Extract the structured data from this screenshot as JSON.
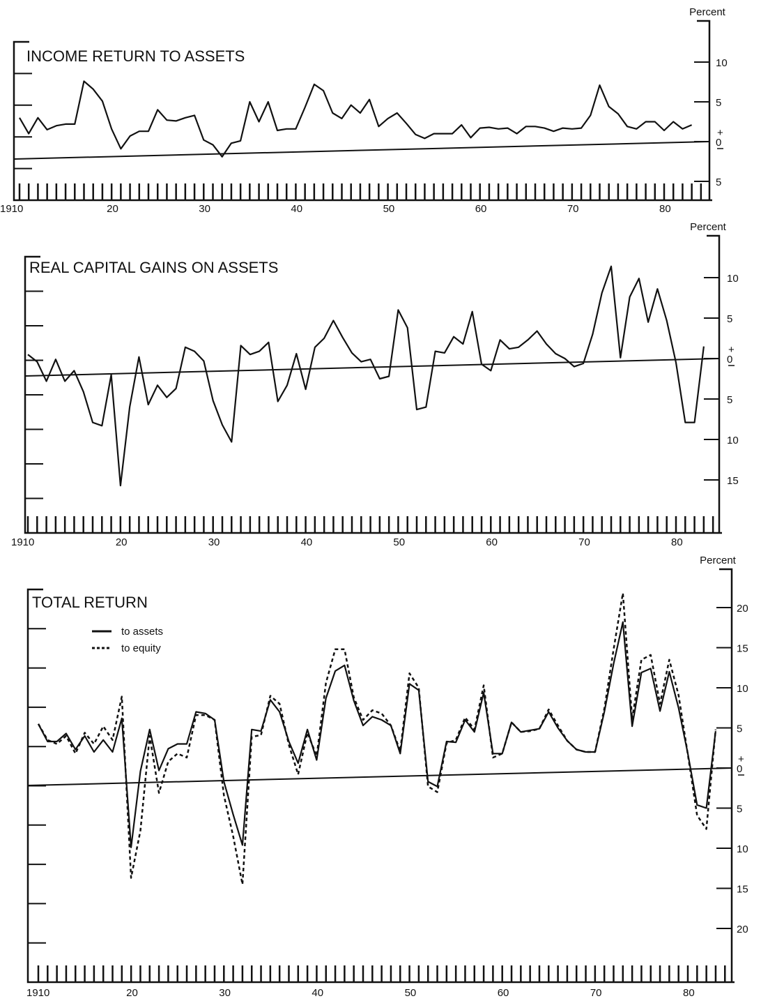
{
  "chart_data": [
    {
      "type": "line",
      "title": "INCOME RETURN TO ASSETS",
      "unit_label": "Percent",
      "ylim": [
        -5,
        13
      ],
      "yticks": [
        {
          "v": 10,
          "t": "10"
        },
        {
          "v": 5,
          "t": "5"
        },
        {
          "v": 0,
          "t": "0"
        },
        {
          "v": -5,
          "t": "5"
        }
      ],
      "xticks": [
        {
          "v": 1910,
          "t": "1910"
        },
        {
          "v": 1920,
          "t": "20"
        },
        {
          "v": 1930,
          "t": "30"
        },
        {
          "v": 1940,
          "t": "40"
        },
        {
          "v": 1950,
          "t": "50"
        },
        {
          "v": 1960,
          "t": "60"
        },
        {
          "v": 1970,
          "t": "70"
        },
        {
          "v": 1980,
          "t": "80"
        }
      ],
      "xlim": [
        1910,
        1983
      ],
      "series": [
        {
          "style": "solid",
          "x": [
            1910,
            1911,
            1912,
            1913,
            1914,
            1915,
            1916,
            1917,
            1918,
            1919,
            1920,
            1921,
            1922,
            1923,
            1924,
            1925,
            1926,
            1927,
            1928,
            1929,
            1930,
            1931,
            1932,
            1933,
            1934,
            1935,
            1936,
            1937,
            1938,
            1939,
            1940,
            1941,
            1942,
            1943,
            1944,
            1945,
            1946,
            1947,
            1948,
            1949,
            1950,
            1951,
            1952,
            1953,
            1954,
            1955,
            1956,
            1957,
            1958,
            1959,
            1960,
            1961,
            1962,
            1963,
            1964,
            1965,
            1966,
            1967,
            1968,
            1969,
            1970,
            1971,
            1972,
            1973,
            1974,
            1975,
            1976,
            1977,
            1978,
            1979,
            1980,
            1981,
            1982,
            1983
          ],
          "y": [
            3.0,
            1.0,
            3.0,
            1.5,
            2.0,
            2.2,
            2.2,
            7.6,
            6.6,
            5.1,
            1.6,
            -0.9,
            0.7,
            1.3,
            1.3,
            4.0,
            2.7,
            2.6,
            3.0,
            3.3,
            0.2,
            -0.4,
            -1.9,
            -0.2,
            0.1,
            5.0,
            2.5,
            5.0,
            1.4,
            1.6,
            1.6,
            4.3,
            7.2,
            6.4,
            3.6,
            2.9,
            4.6,
            3.6,
            5.3,
            1.9,
            2.9,
            3.6,
            2.3,
            0.9,
            0.4,
            1.0,
            1.0,
            1.0,
            2.1,
            0.5,
            1.7,
            1.8,
            1.6,
            1.7,
            1.0,
            1.9,
            1.9,
            1.7,
            1.3,
            1.7,
            1.6,
            1.7,
            3.3,
            7.1,
            4.4,
            3.5,
            1.9,
            1.6,
            2.5,
            2.5,
            1.4,
            2.5,
            1.6,
            2.1
          ]
        }
      ]
    },
    {
      "type": "line",
      "title": "REAL CAPITAL GAINS ON ASSETS",
      "unit_label": "Percent",
      "ylim": [
        -19,
        14
      ],
      "yticks": [
        {
          "v": 10,
          "t": "10"
        },
        {
          "v": 5,
          "t": "5"
        },
        {
          "v": 0,
          "t": "0"
        },
        {
          "v": -5,
          "t": "5"
        },
        {
          "v": -10,
          "t": "10"
        },
        {
          "v": -15,
          "t": "15"
        }
      ],
      "xticks": [
        {
          "v": 1910,
          "t": "1910"
        },
        {
          "v": 1920,
          "t": "20"
        },
        {
          "v": 1930,
          "t": "30"
        },
        {
          "v": 1940,
          "t": "40"
        },
        {
          "v": 1950,
          "t": "50"
        },
        {
          "v": 1960,
          "t": "60"
        },
        {
          "v": 1970,
          "t": "70"
        },
        {
          "v": 1980,
          "t": "80"
        }
      ],
      "xlim": [
        1910,
        1983
      ],
      "series": [
        {
          "style": "solid",
          "x": [
            1910,
            1911,
            1912,
            1913,
            1914,
            1915,
            1916,
            1917,
            1918,
            1919,
            1920,
            1921,
            1922,
            1923,
            1924,
            1925,
            1926,
            1927,
            1928,
            1929,
            1930,
            1931,
            1932,
            1933,
            1934,
            1935,
            1936,
            1937,
            1938,
            1939,
            1940,
            1941,
            1942,
            1943,
            1944,
            1945,
            1946,
            1947,
            1948,
            1949,
            1950,
            1951,
            1952,
            1953,
            1954,
            1955,
            1956,
            1957,
            1958,
            1959,
            1960,
            1961,
            1962,
            1963,
            1964,
            1965,
            1966,
            1967,
            1968,
            1969,
            1970,
            1971,
            1972,
            1973,
            1974,
            1975,
            1976,
            1977,
            1978,
            1979,
            1980,
            1981,
            1982,
            1983
          ],
          "y": [
            0.5,
            -0.4,
            -2.8,
            -0.1,
            -2.8,
            -1.5,
            -4.1,
            -7.9,
            -8.3,
            -2.0,
            -15.7,
            -6.0,
            0.2,
            -5.7,
            -3.3,
            -4.8,
            -3.7,
            1.4,
            0.9,
            -0.3,
            -5.2,
            -8.2,
            -10.3,
            1.6,
            0.5,
            0.9,
            2.0,
            -5.3,
            -3.3,
            0.6,
            -3.8,
            1.4,
            2.5,
            4.7,
            2.6,
            0.7,
            -0.4,
            -0.1,
            -2.5,
            -2.2,
            6.0,
            3.8,
            -6.3,
            -6.0,
            0.9,
            0.7,
            2.7,
            1.8,
            5.8,
            -0.7,
            -1.5,
            2.3,
            1.2,
            1.4,
            2.3,
            3.4,
            1.8,
            0.6,
            0.0,
            -1.0,
            -0.6,
            3.0,
            8.1,
            11.4,
            0.1,
            7.6,
            9.9,
            4.5,
            8.6,
            4.7,
            -0.5,
            -7.9,
            -7.9,
            1.5
          ]
        }
      ]
    },
    {
      "type": "line",
      "title": "TOTAL RETURN",
      "unit_label": "Percent",
      "ylim": [
        -22,
        25
      ],
      "yticks": [
        {
          "v": 20,
          "t": "20"
        },
        {
          "v": 15,
          "t": "15"
        },
        {
          "v": 10,
          "t": "10"
        },
        {
          "v": 5,
          "t": "5"
        },
        {
          "v": 0,
          "t": "0"
        },
        {
          "v": -5,
          "t": "5"
        },
        {
          "v": -10,
          "t": "10"
        },
        {
          "v": -15,
          "t": "15"
        },
        {
          "v": -20,
          "t": "20"
        }
      ],
      "xticks": [
        {
          "v": 1910,
          "t": "1910"
        },
        {
          "v": 1920,
          "t": "20"
        },
        {
          "v": 1930,
          "t": "30"
        },
        {
          "v": 1940,
          "t": "40"
        },
        {
          "v": 1950,
          "t": "50"
        },
        {
          "v": 1960,
          "t": "60"
        },
        {
          "v": 1970,
          "t": "70"
        },
        {
          "v": 1980,
          "t": "80"
        }
      ],
      "xlim": [
        1910,
        1983
      ],
      "legend": [
        {
          "label": "to assets",
          "style": "solid"
        },
        {
          "label": "to equity",
          "style": "dashed"
        }
      ],
      "series": [
        {
          "name": "to assets",
          "style": "solid",
          "x": [
            1910,
            1911,
            1912,
            1913,
            1914,
            1915,
            1916,
            1917,
            1918,
            1919,
            1920,
            1921,
            1922,
            1923,
            1924,
            1925,
            1926,
            1927,
            1928,
            1929,
            1930,
            1931,
            1932,
            1933,
            1934,
            1935,
            1936,
            1937,
            1938,
            1939,
            1940,
            1941,
            1942,
            1943,
            1944,
            1945,
            1946,
            1947,
            1948,
            1949,
            1950,
            1951,
            1952,
            1953,
            1954,
            1955,
            1956,
            1957,
            1958,
            1959,
            1960,
            1961,
            1962,
            1963,
            1964,
            1965,
            1966,
            1967,
            1968,
            1969,
            1970,
            1971,
            1972,
            1973,
            1974,
            1975,
            1976,
            1977,
            1978,
            1979,
            1980,
            1981,
            1982,
            1983
          ],
          "y": [
            5.5,
            3.3,
            3.3,
            4.3,
            2.3,
            4.0,
            2.0,
            3.5,
            2.0,
            6.2,
            -9.9,
            -0.4,
            4.8,
            -0.3,
            2.4,
            3.0,
            3.0,
            7.0,
            6.8,
            6.0,
            -1.7,
            -5.8,
            -9.6,
            4.8,
            4.6,
            8.5,
            7.0,
            3.3,
            0.6,
            4.8,
            1.0,
            8.7,
            12.1,
            12.8,
            8.4,
            5.3,
            6.4,
            6.0,
            5.3,
            1.8,
            10.5,
            9.7,
            -1.7,
            -2.3,
            3.3,
            3.2,
            6.0,
            4.5,
            9.4,
            1.8,
            1.8,
            5.7,
            4.5,
            4.7,
            4.9,
            7.0,
            5.0,
            3.4,
            2.3,
            2.0,
            2.0,
            7.0,
            13.0,
            18.2,
            5.2,
            11.9,
            12.4,
            7.1,
            12.0,
            7.5,
            1.8,
            -4.6,
            -5.0,
            4.6
          ]
        },
        {
          "name": "to equity",
          "style": "dashed",
          "x": [
            1910,
            1911,
            1912,
            1913,
            1914,
            1915,
            1916,
            1917,
            1918,
            1919,
            1920,
            1921,
            1922,
            1923,
            1924,
            1925,
            1926,
            1927,
            1928,
            1929,
            1930,
            1931,
            1932,
            1933,
            1934,
            1935,
            1936,
            1937,
            1938,
            1939,
            1940,
            1941,
            1942,
            1943,
            1944,
            1945,
            1946,
            1947,
            1948,
            1949,
            1950,
            1951,
            1952,
            1953,
            1954,
            1955,
            1956,
            1957,
            1958,
            1959,
            1960,
            1961,
            1962,
            1963,
            1964,
            1965,
            1966,
            1967,
            1968,
            1969,
            1970,
            1971,
            1972,
            1973,
            1974,
            1975,
            1976,
            1977,
            1978,
            1979,
            1980,
            1981,
            1982,
            1983
          ],
          "y": [
            5.5,
            3.5,
            3.0,
            4.0,
            1.8,
            4.4,
            3.0,
            5.2,
            3.5,
            8.9,
            -13.7,
            -7.8,
            4.0,
            -3.1,
            0.8,
            1.8,
            1.3,
            6.6,
            6.6,
            6.0,
            -3.4,
            -8.5,
            -14.5,
            3.9,
            4.1,
            9.0,
            8.0,
            2.9,
            -0.8,
            4.4,
            1.5,
            10.6,
            14.8,
            14.8,
            8.8,
            6.0,
            7.2,
            6.8,
            5.3,
            2.1,
            11.8,
            10.0,
            -2.3,
            -3.0,
            3.1,
            3.5,
            6.3,
            4.8,
            10.3,
            1.3,
            1.8,
            5.7,
            4.5,
            4.6,
            4.9,
            7.3,
            5.3,
            3.4,
            2.3,
            2.0,
            2.0,
            7.4,
            14.8,
            21.8,
            6.1,
            13.5,
            14.1,
            8.0,
            13.5,
            9.1,
            1.7,
            -5.9,
            -7.6,
            4.8
          ]
        }
      ]
    }
  ]
}
